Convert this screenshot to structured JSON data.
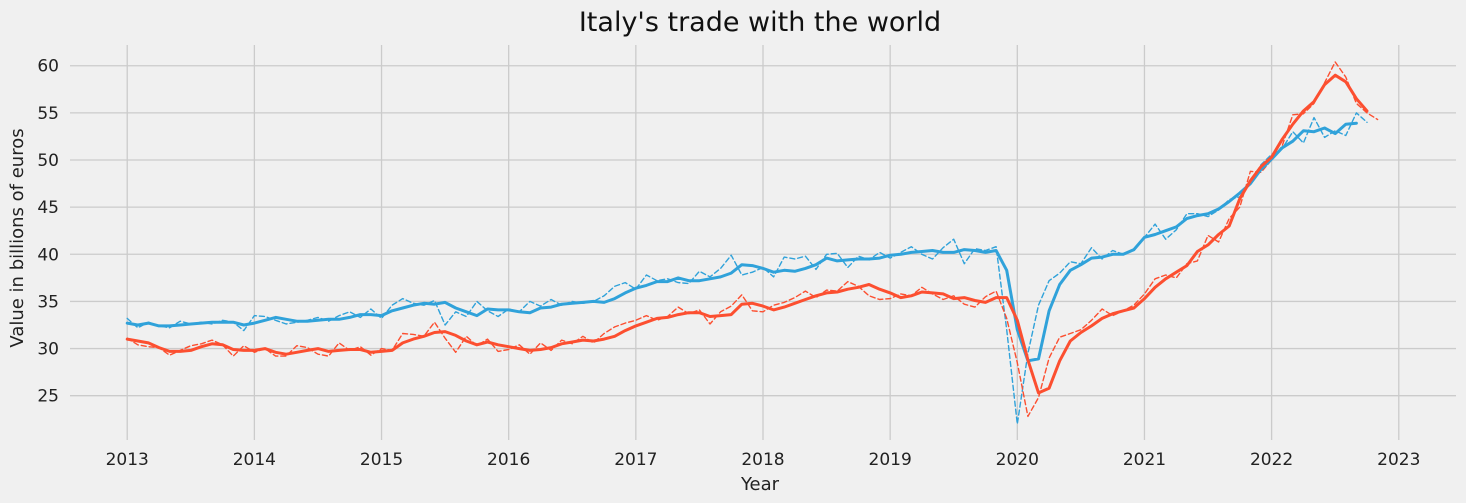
{
  "chart_data": {
    "type": "line",
    "title": "Italy's trade with the world",
    "xlabel": "Year",
    "ylabel": "Value in billions of euros",
    "xlim": [
      2012.55,
      2023.45
    ],
    "ylim": [
      20.3,
      62.2
    ],
    "x_ticks": [
      2013,
      2014,
      2015,
      2016,
      2017,
      2018,
      2019,
      2020,
      2021,
      2022,
      2023
    ],
    "y_ticks": [
      25,
      30,
      35,
      40,
      45,
      50,
      55,
      60
    ],
    "grid": true,
    "x_start": 2013.0,
    "x_step": 0.0833333,
    "series": [
      {
        "color": "#30a2da",
        "style": "dashed",
        "values": [
          33.2,
          32.2,
          32.8,
          32.4,
          32.2,
          32.9,
          32.6,
          32.8,
          32.6,
          33.0,
          32.8,
          31.9,
          33.5,
          33.4,
          33.0,
          32.6,
          32.8,
          33.0,
          33.3,
          32.9,
          33.5,
          33.9,
          33.3,
          34.2,
          33.2,
          34.6,
          35.3,
          34.8,
          34.6,
          35.1,
          32.5,
          33.9,
          33.4,
          35.0,
          34.0,
          33.4,
          34.2,
          33.9,
          35.0,
          34.5,
          35.2,
          34.6,
          35.0,
          34.8,
          35.0,
          35.6,
          36.6,
          37.0,
          36.3,
          37.8,
          37.2,
          37.4,
          37.0,
          36.9,
          38.2,
          37.6,
          38.5,
          39.9,
          37.8,
          38.1,
          38.6,
          37.6,
          39.7,
          39.5,
          39.8,
          38.4,
          40.0,
          40.1,
          38.6,
          39.8,
          39.4,
          40.2,
          39.6,
          40.2,
          40.8,
          40.0,
          39.5,
          40.7,
          41.6,
          39.0,
          40.6,
          40.4,
          40.8,
          32.0,
          22.0,
          29.5,
          34.6,
          37.2,
          38.0,
          39.2,
          39.0,
          40.7,
          39.5,
          40.4,
          40.0,
          40.4,
          41.8,
          43.2,
          41.6,
          42.6,
          44.3,
          44.3,
          44.0,
          44.7,
          45.8,
          46.1,
          47.6,
          49.5,
          50.6,
          51.2,
          53.0,
          51.8,
          54.5,
          52.4,
          53.1,
          52.6,
          55.0,
          54.0
        ]
      },
      {
        "color": "#fc4f30",
        "style": "dashed",
        "values": [
          31.1,
          30.4,
          30.2,
          30.1,
          29.3,
          29.8,
          30.3,
          30.5,
          30.9,
          30.4,
          29.2,
          30.3,
          29.6,
          30.0,
          29.2,
          29.2,
          30.3,
          30.1,
          29.4,
          29.2,
          30.6,
          29.8,
          30.2,
          29.3,
          30.0,
          29.8,
          31.6,
          31.5,
          31.3,
          32.8,
          31.1,
          29.6,
          31.3,
          30.3,
          31.0,
          29.7,
          29.9,
          30.4,
          29.4,
          30.6,
          29.8,
          30.9,
          30.5,
          31.3,
          30.6,
          31.6,
          32.3,
          32.7,
          33.0,
          33.5,
          33.0,
          33.4,
          34.4,
          33.7,
          34.1,
          32.6,
          33.9,
          34.5,
          35.7,
          34.0,
          33.9,
          34.6,
          34.9,
          35.4,
          36.1,
          35.4,
          36.2,
          36.1,
          37.1,
          36.6,
          35.6,
          35.2,
          35.3,
          35.8,
          35.6,
          36.5,
          35.8,
          35.2,
          35.6,
          34.7,
          34.4,
          35.5,
          36.1,
          33.2,
          28.5,
          22.8,
          24.8,
          29.0,
          31.2,
          31.6,
          32.0,
          33.0,
          34.2,
          33.5,
          34.0,
          34.6,
          35.8,
          37.4,
          37.8,
          37.5,
          39.0,
          39.3,
          42.0,
          41.3,
          43.8,
          45.0,
          48.8,
          48.7,
          50.0,
          51.5,
          54.8,
          54.9,
          56.0,
          58.2,
          60.4,
          58.8,
          56.0,
          55.0,
          54.3
        ]
      },
      {
        "color": "#30a2da",
        "style": "solid",
        "values": [
          32.7,
          32.5,
          32.7,
          32.4,
          32.4,
          32.5,
          32.6,
          32.7,
          32.8,
          32.8,
          32.8,
          32.5,
          32.7,
          33.0,
          33.3,
          33.1,
          32.9,
          32.9,
          33.0,
          33.1,
          33.1,
          33.3,
          33.6,
          33.6,
          33.5,
          34.0,
          34.3,
          34.6,
          34.8,
          34.7,
          34.9,
          34.3,
          33.9,
          33.5,
          34.2,
          34.1,
          34.1,
          33.9,
          33.8,
          34.3,
          34.4,
          34.7,
          34.8,
          34.9,
          35.0,
          34.9,
          35.3,
          35.9,
          36.4,
          36.7,
          37.1,
          37.1,
          37.5,
          37.2,
          37.2,
          37.4,
          37.6,
          38.0,
          38.9,
          38.8,
          38.5,
          38.1,
          38.3,
          38.2,
          38.5,
          38.9,
          39.6,
          39.3,
          39.4,
          39.5,
          39.5,
          39.6,
          39.9,
          40.0,
          40.2,
          40.3,
          40.4,
          40.2,
          40.2,
          40.5,
          40.4,
          40.2,
          40.4,
          38.3,
          32.0,
          28.7,
          28.9,
          34.0,
          36.8,
          38.3,
          38.9,
          39.6,
          39.7,
          40.0,
          40.0,
          40.5,
          41.8,
          42.1,
          42.5,
          42.9,
          43.8,
          44.1,
          44.3,
          44.8,
          45.6,
          46.5,
          47.5,
          49.0,
          50.1,
          51.3,
          52.0,
          53.1,
          53.0,
          53.4,
          52.8,
          53.8,
          53.9
        ]
      },
      {
        "color": "#fc4f30",
        "style": "solid",
        "values": [
          31.0,
          30.8,
          30.6,
          30.1,
          29.7,
          29.7,
          29.8,
          30.2,
          30.5,
          30.4,
          29.9,
          29.8,
          29.8,
          30.0,
          29.6,
          29.4,
          29.6,
          29.8,
          30.0,
          29.7,
          29.8,
          29.9,
          29.9,
          29.6,
          29.7,
          29.8,
          30.6,
          31.0,
          31.3,
          31.7,
          31.8,
          31.4,
          30.8,
          30.4,
          30.7,
          30.4,
          30.2,
          30.0,
          29.8,
          29.9,
          30.1,
          30.5,
          30.7,
          30.9,
          30.8,
          31.0,
          31.3,
          31.9,
          32.4,
          32.8,
          33.2,
          33.3,
          33.6,
          33.8,
          33.8,
          33.4,
          33.5,
          33.6,
          34.7,
          34.8,
          34.5,
          34.1,
          34.4,
          34.8,
          35.2,
          35.6,
          35.9,
          36.0,
          36.3,
          36.5,
          36.8,
          36.3,
          35.9,
          35.4,
          35.6,
          36.0,
          35.9,
          35.8,
          35.3,
          35.4,
          35.1,
          34.9,
          35.4,
          35.4,
          33.0,
          28.8,
          25.3,
          25.8,
          28.7,
          30.8,
          31.7,
          32.4,
          33.2,
          33.7,
          34.0,
          34.3,
          35.3,
          36.5,
          37.4,
          38.1,
          38.8,
          40.3,
          41.0,
          42.1,
          43.0,
          45.9,
          47.8,
          49.3,
          50.3,
          52.2,
          53.8,
          55.2,
          56.2,
          58.0,
          59.0,
          58.3,
          56.5,
          55.2
        ]
      }
    ]
  }
}
